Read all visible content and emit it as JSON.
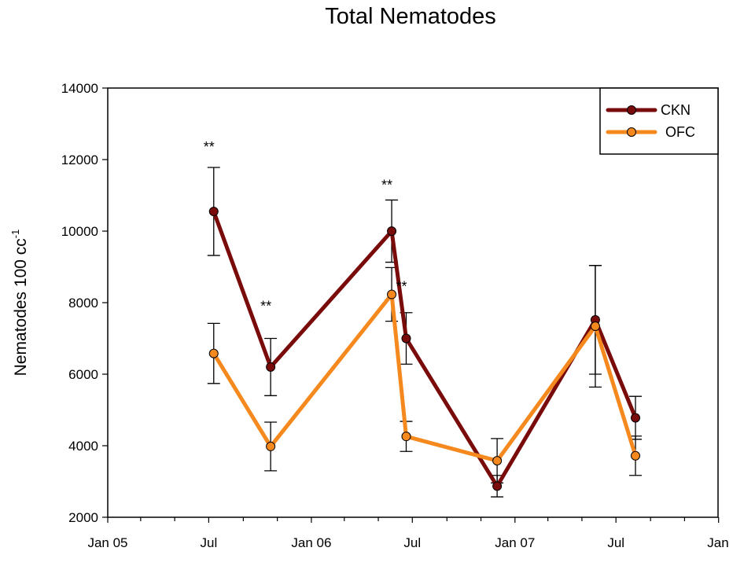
{
  "chart_data": {
    "type": "line",
    "title": "Total Nematodes",
    "ylabel": "Nematodes 100 cc",
    "ylabel_sup": "-1",
    "xlabel": "",
    "ylim": [
      2000,
      14000
    ],
    "yticks": [
      2000,
      4000,
      6000,
      8000,
      10000,
      12000,
      14000
    ],
    "xlim": [
      "2005-01-01",
      "2007-12-31"
    ],
    "xtick_labels": [
      {
        "date": "2005-01-01",
        "label": "Jan 05"
      },
      {
        "date": "2005-07-01",
        "label": "Jul"
      },
      {
        "date": "2006-01-01",
        "label": "Jan 06"
      },
      {
        "date": "2006-07-01",
        "label": "Jul"
      },
      {
        "date": "2007-01-01",
        "label": "Jan 07"
      },
      {
        "date": "2007-07-01",
        "label": "Jul"
      },
      {
        "date": "2008-01-01",
        "label": "Jan"
      }
    ],
    "series": [
      {
        "name": "CKN",
        "color": "#7a0b0b",
        "points": [
          {
            "x": "2005-07-10",
            "y": 10550,
            "err": 1230
          },
          {
            "x": "2005-10-20",
            "y": 6200,
            "err": 800
          },
          {
            "x": "2006-05-25",
            "y": 10000,
            "err": 870
          },
          {
            "x": "2006-06-20",
            "y": 7000,
            "err": 720
          },
          {
            "x": "2006-11-30",
            "y": 2870,
            "err": 300
          },
          {
            "x": "2007-05-25",
            "y": 7520,
            "err": 1520
          },
          {
            "x": "2007-08-05",
            "y": 4780,
            "err": 600
          }
        ]
      },
      {
        "name": "OFC",
        "color": "#f5891e",
        "points": [
          {
            "x": "2005-07-10",
            "y": 6580,
            "err": 840
          },
          {
            "x": "2005-10-20",
            "y": 3980,
            "err": 680
          },
          {
            "x": "2006-05-25",
            "y": 8230,
            "err": 750
          },
          {
            "x": "2006-06-20",
            "y": 4260,
            "err": 420
          },
          {
            "x": "2006-11-30",
            "y": 3580,
            "err": 620
          },
          {
            "x": "2007-05-25",
            "y": 7340,
            "err": 1700
          },
          {
            "x": "2007-08-05",
            "y": 3720,
            "err": 550
          }
        ]
      }
    ],
    "annotations": [
      {
        "text": "**",
        "x": "2005-07-10",
        "y": 12400
      },
      {
        "text": "**",
        "x": "2005-10-20",
        "y": 7950
      },
      {
        "text": "**",
        "x": "2006-05-25",
        "y": 11330
      },
      {
        "text": "**",
        "x": "2006-06-20",
        "y": 8500
      }
    ],
    "legend": {
      "placement": "top-right",
      "entries": [
        "CKN",
        "OFC"
      ]
    },
    "grid": false
  }
}
